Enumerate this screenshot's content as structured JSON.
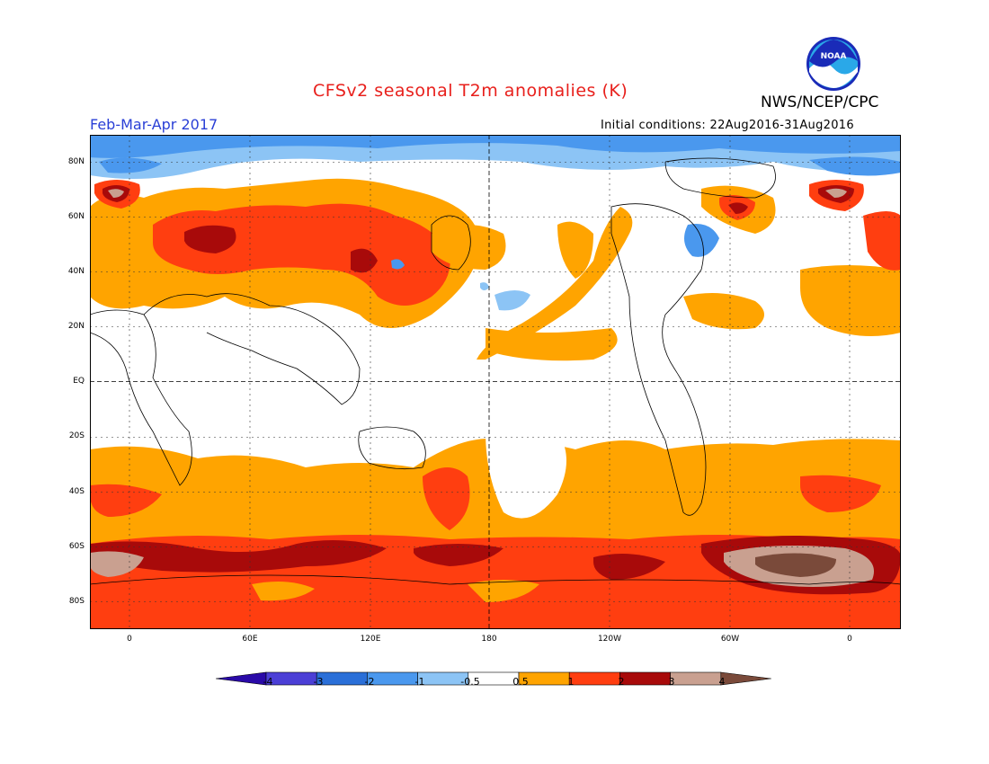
{
  "header": {
    "title": "CFSv2 seasonal T2m anomalies (K)",
    "org": "NWS/NCEP/CPC",
    "period": "Feb-Mar-Apr 2017",
    "initial_conditions": "Initial conditions: 22Aug2016-31Aug2016",
    "logo_text": "NOAA"
  },
  "map": {
    "lat_labels": [
      "80N",
      "60N",
      "40N",
      "20N",
      "EQ",
      "20S",
      "40S",
      "60S",
      "80S"
    ],
    "lon_labels": [
      "0",
      "60E",
      "120E",
      "180",
      "120W",
      "60W",
      "0"
    ]
  },
  "colorbar": {
    "labels": [
      "-4",
      "-3",
      "-2",
      "-1",
      "-0.5",
      "0.5",
      "1",
      "2",
      "3",
      "4"
    ],
    "colors": [
      "#2a0aa8",
      "#4b3fd6",
      "#2a6fd8",
      "#4a98ee",
      "#8cc4f5",
      "#ffffff",
      "#ffa400",
      "#ff3e10",
      "#a80a0a",
      "#c9a090",
      "#7a4a3a"
    ]
  },
  "colors": {
    "title": "#e8201c",
    "period": "#2a3fd6"
  }
}
